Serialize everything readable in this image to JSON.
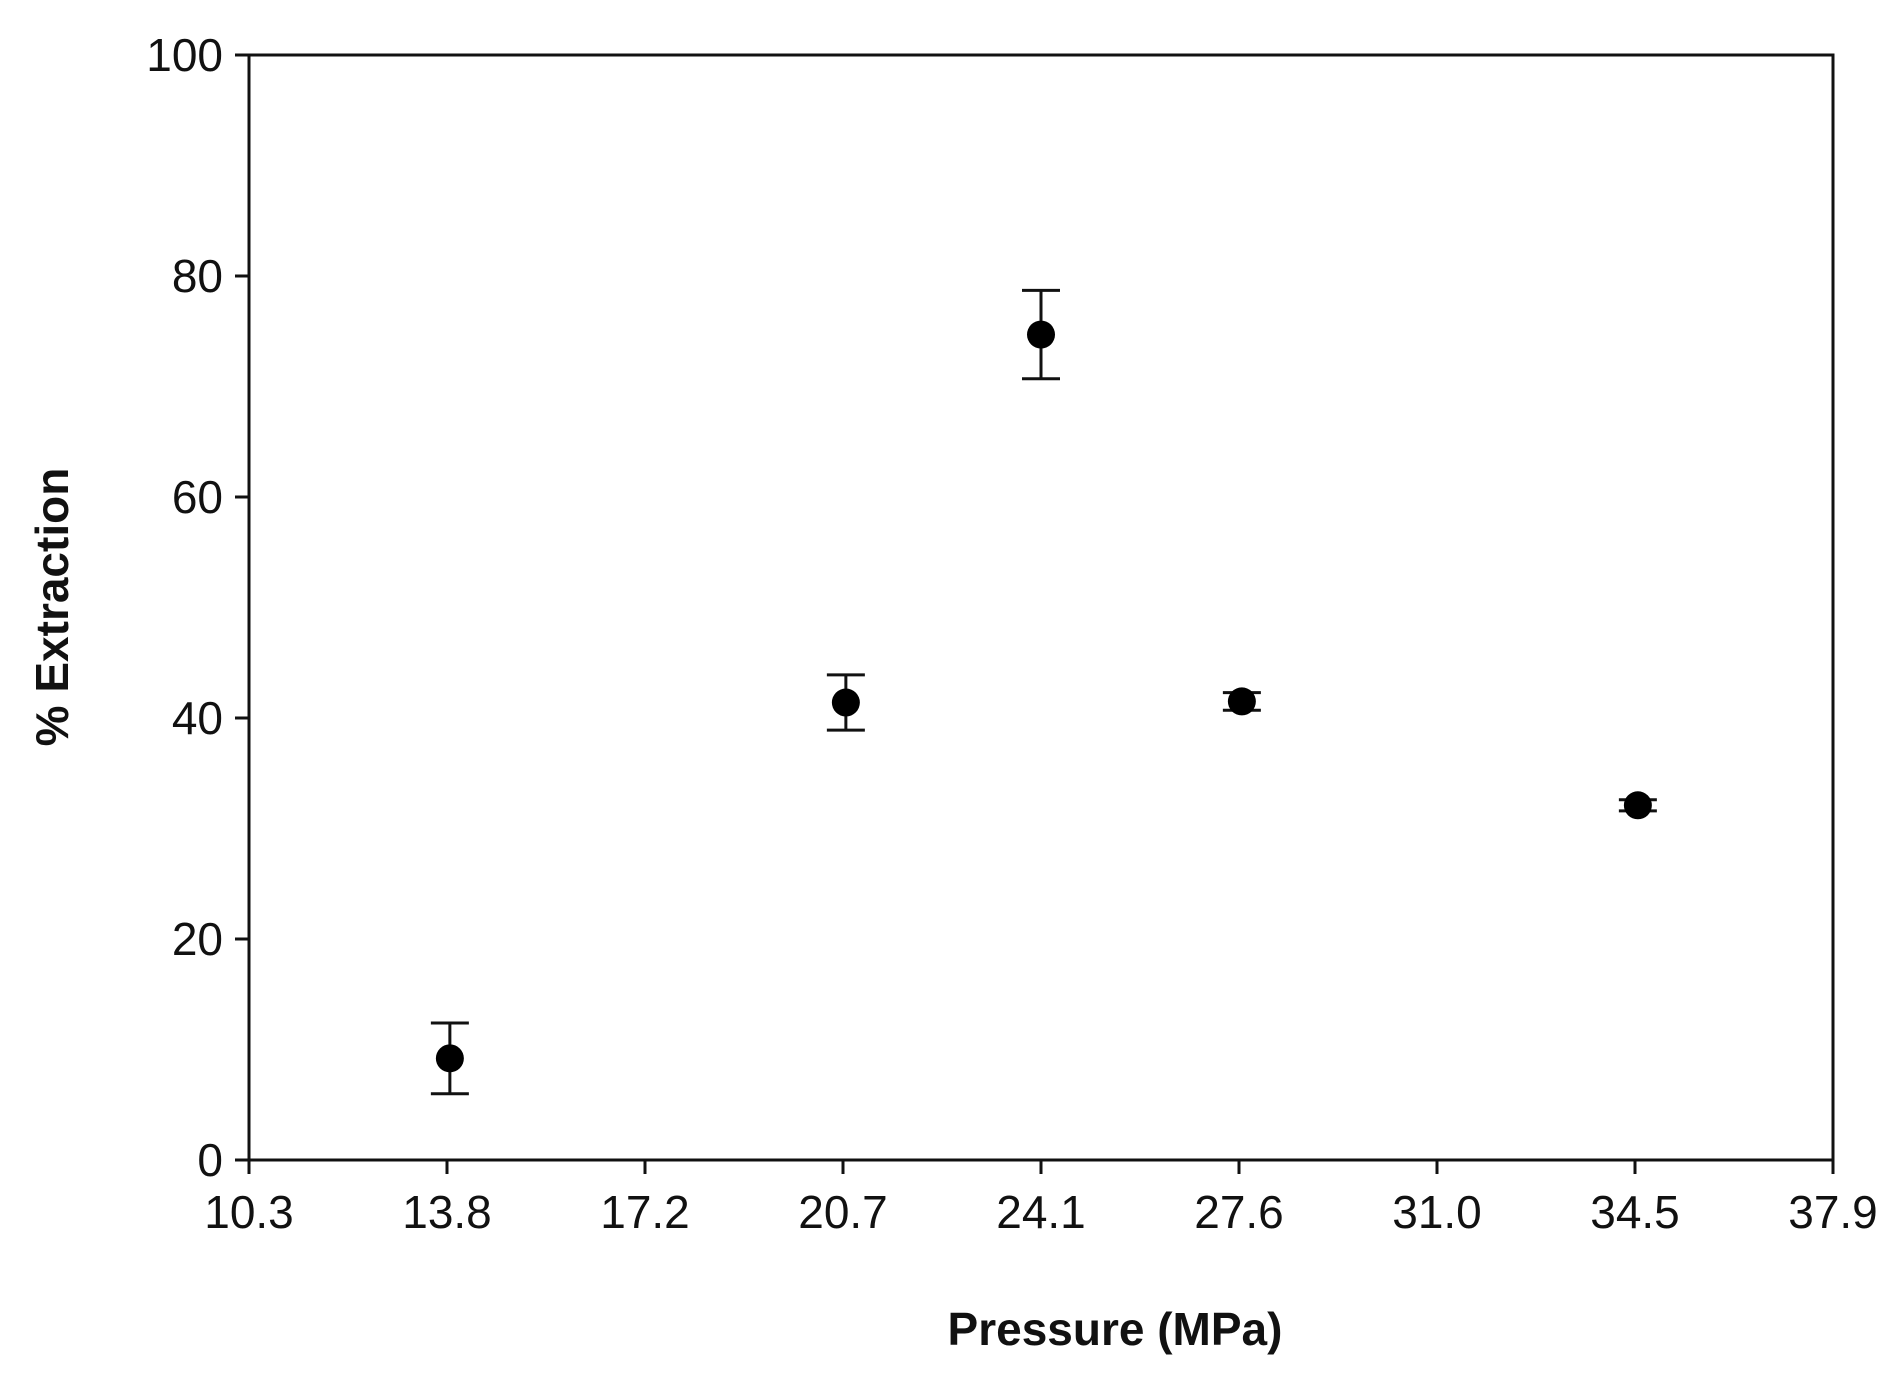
{
  "chart_data": {
    "type": "scatter",
    "title": "",
    "xlabel": "Pressure (MPa)",
    "ylabel": "% Extraction",
    "xlim": [
      10.3,
      37.9
    ],
    "ylim": [
      0,
      100
    ],
    "x_ticks": [
      "10.3",
      "13.8",
      "17.2",
      "20.7",
      "24.1",
      "27.6",
      "31.0",
      "34.5",
      "37.9"
    ],
    "y_ticks": [
      "0",
      "20",
      "40",
      "60",
      "80",
      "100"
    ],
    "grid": false,
    "legend": "none",
    "marker_color": "#000000",
    "series": [
      {
        "x": [
          13.8,
          20.7,
          24.1,
          27.6,
          34.5
        ],
        "y": [
          9.2,
          41.4,
          74.7,
          41.5,
          32.1
        ],
        "y_error": [
          3.2,
          2.5,
          4.0,
          0.8,
          0.5
        ]
      }
    ]
  }
}
